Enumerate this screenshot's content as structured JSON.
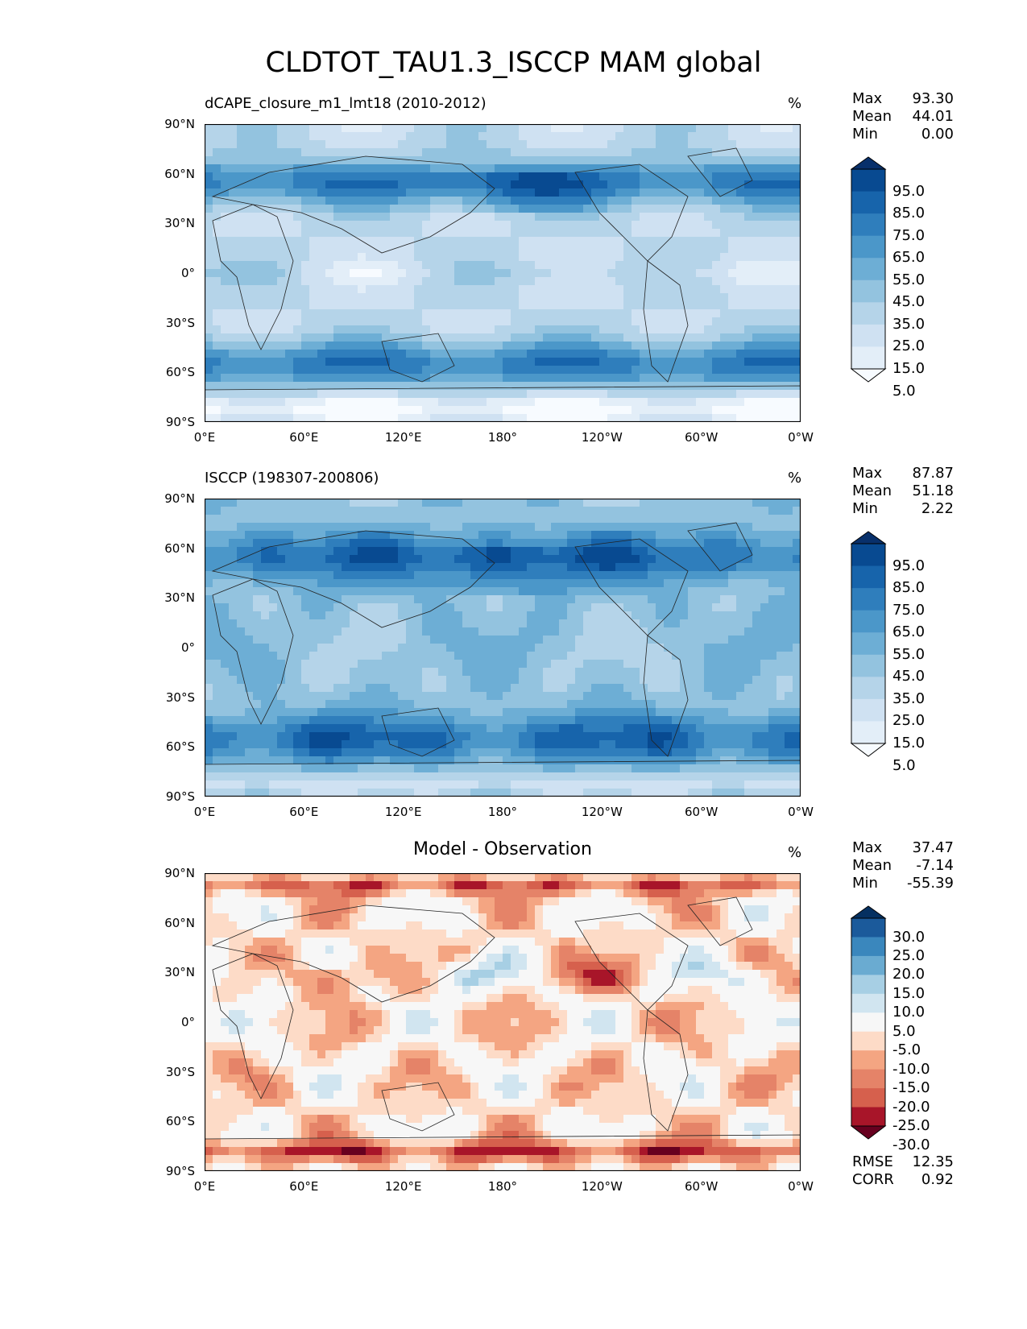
{
  "figure_title": "CLDTOT_TAU1.3_ISCCP MAM global",
  "lat_ticks": [
    "90°N",
    "60°N",
    "30°N",
    "0°",
    "30°S",
    "60°S",
    "90°S"
  ],
  "lon_ticks": [
    "0°E",
    "60°E",
    "120°E",
    "180°",
    "120°W",
    "60°W",
    "0°W"
  ],
  "colors": {
    "blues": [
      "#f7fbff",
      "#e3eef8",
      "#cfe1f2",
      "#b5d4e9",
      "#93c3df",
      "#6daed5",
      "#4b97c9",
      "#2f7ebc",
      "#1764ab",
      "#084a91",
      "#08306b"
    ],
    "diff": [
      "#67001f",
      "#a81529",
      "#d6604d",
      "#e58368",
      "#f4a582",
      "#fddbc7",
      "#f7f7f7",
      "#d1e5f0",
      "#a7cfe4",
      "#6aabd1",
      "#3a87bd",
      "#1b5a9b",
      "#053061"
    ]
  },
  "chart_data": [
    {
      "type": "heatmap",
      "title": "dCAPE_closure_m1_lmt18 (2010-2012)",
      "units": "%",
      "stats": {
        "Max": "93.30",
        "Mean": "44.01",
        "Min": "0.00"
      },
      "colorbar_levels": [
        "5.0",
        "15.0",
        "25.0",
        "35.0",
        "45.0",
        "55.0",
        "65.0",
        "75.0",
        "85.0",
        "95.0"
      ],
      "xlim": [
        0,
        360
      ],
      "ylim": [
        -90,
        90
      ]
    },
    {
      "type": "heatmap",
      "title": "ISCCP (198307-200806)",
      "units": "%",
      "stats": {
        "Max": "87.87",
        "Mean": "51.18",
        "Min": "2.22"
      },
      "colorbar_levels": [
        "5.0",
        "15.0",
        "25.0",
        "35.0",
        "45.0",
        "55.0",
        "65.0",
        "75.0",
        "85.0",
        "95.0"
      ],
      "xlim": [
        0,
        360
      ],
      "ylim": [
        -90,
        90
      ]
    },
    {
      "type": "heatmap",
      "title": "Model - Observation",
      "units": "%",
      "stats": {
        "Max": "37.47",
        "Mean": "-7.14",
        "Min": "-55.39"
      },
      "colorbar_levels": [
        "-30.0",
        "-25.0",
        "-20.0",
        "-15.0",
        "-10.0",
        "-5.0",
        "5.0",
        "10.0",
        "15.0",
        "20.0",
        "25.0",
        "30.0"
      ],
      "rmse_corr": {
        "RMSE": "12.35",
        "CORR": "0.92"
      },
      "xlim": [
        0,
        360
      ],
      "ylim": [
        -90,
        90
      ]
    }
  ]
}
